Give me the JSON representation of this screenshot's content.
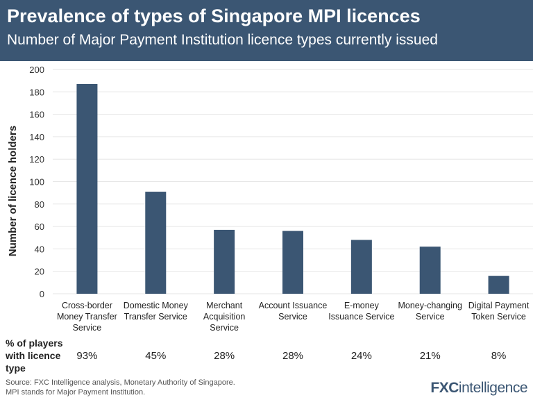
{
  "header": {
    "title": "Prevalence of types of Singapore MPI licences",
    "subtitle": "Number of Major Payment Institution licence types currently issued"
  },
  "chart_data": {
    "type": "bar",
    "title": "Prevalence of types of Singapore MPI licences",
    "subtitle": "Number of Major Payment Institution licence types currently issued",
    "ylabel": "Number of licence holders",
    "xlabel": "",
    "ylim": [
      0,
      200
    ],
    "yticks": [
      0,
      20,
      40,
      60,
      80,
      100,
      120,
      140,
      160,
      180,
      200
    ],
    "grid": true,
    "bar_color": "#3b5673",
    "categories": [
      "Cross-border Money Transfer Service",
      "Domestic Money Transfer Service",
      "Merchant Acquisition Service",
      "Account Issuance Service",
      "E-money Issuance Service",
      "Money-changing Service",
      "Digital Payment Token Service"
    ],
    "values": [
      187,
      91,
      57,
      56,
      48,
      42,
      16
    ],
    "pct_label": "% of players with licence type",
    "pct_values": [
      "93%",
      "45%",
      "28%",
      "28%",
      "24%",
      "21%",
      "8%"
    ]
  },
  "footer": {
    "source": "Source: FXC Intelligence analysis, Monetary Authority of Singapore.",
    "note": "MPI stands for Major Payment Institution.",
    "logo_bold": "FXC",
    "logo_rest": "intelligence"
  }
}
